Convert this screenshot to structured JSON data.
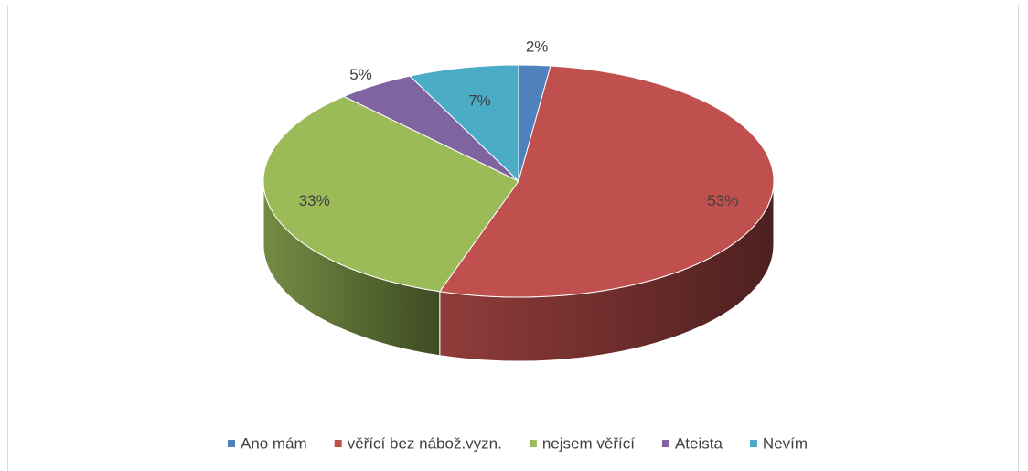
{
  "chart_data": {
    "type": "pie3d",
    "categories": [
      "Ano mám",
      "věřící bez nábož.vyzn.",
      "nejsem věřící",
      "Ateista",
      "Nevím"
    ],
    "values": [
      2,
      53,
      33,
      5,
      7
    ],
    "value_labels": [
      "2%",
      "53%",
      "33%",
      "5%",
      "7%"
    ],
    "colors": [
      "#4f81bd",
      "#c0504d",
      "#9bbb59",
      "#8064a2",
      "#4bacc6"
    ],
    "legend": "bottom"
  }
}
